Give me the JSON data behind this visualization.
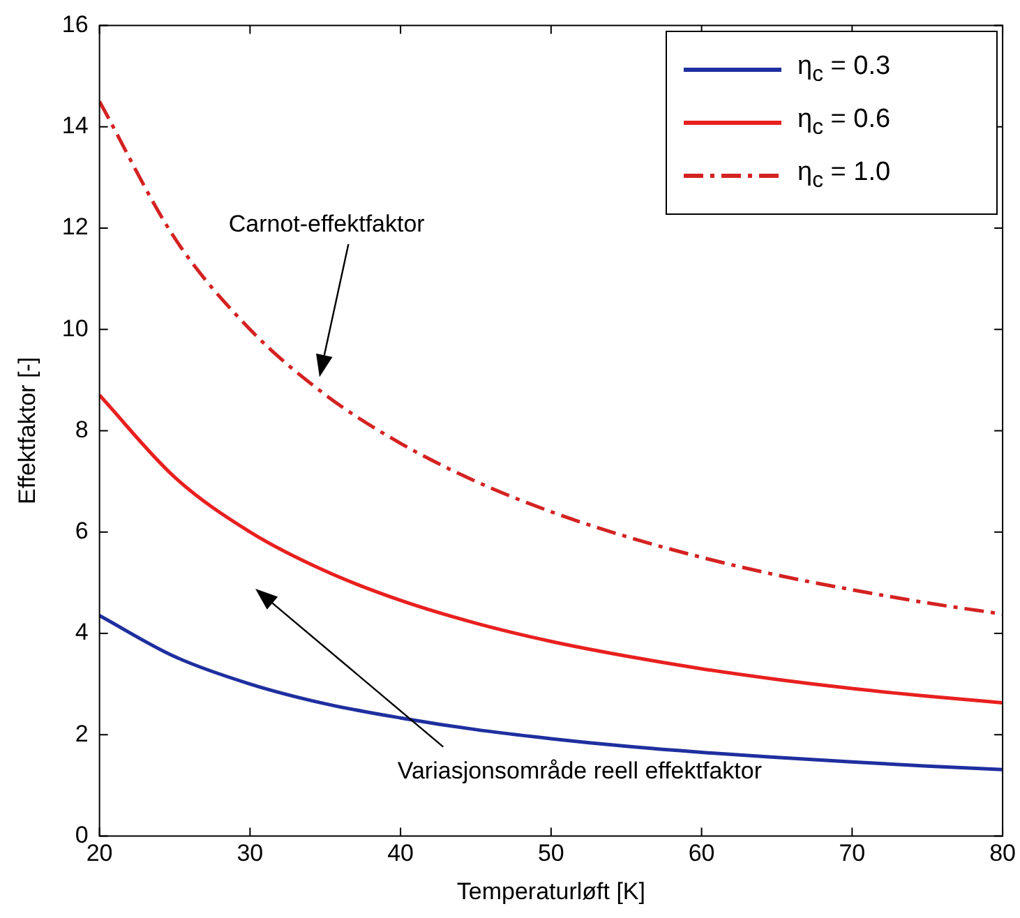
{
  "chart_data": {
    "type": "line",
    "xlabel": "Temperaturløft [K]",
    "ylabel": "Effektfaktor [-]",
    "x": [
      20,
      25,
      30,
      35,
      40,
      45,
      50,
      55,
      60,
      65,
      70,
      75,
      80
    ],
    "series": [
      {
        "name": "η$_{c}$ = 0.3",
        "color": "#1f2f9f",
        "line_style": "solid",
        "values": [
          4.35,
          3.54,
          3.0,
          2.61,
          2.33,
          2.1,
          1.92,
          1.77,
          1.65,
          1.55,
          1.46,
          1.38,
          1.31
        ]
      },
      {
        "name": "η$_{c}$ = 0.6",
        "color": "#e8201f",
        "line_style": "solid",
        "values": [
          8.7,
          7.08,
          6.0,
          5.23,
          4.65,
          4.2,
          3.84,
          3.55,
          3.3,
          3.09,
          2.91,
          2.76,
          2.63
        ]
      },
      {
        "name": "η$_{c}$ = 1.0",
        "color": "#d42222",
        "line_style": "dashed",
        "values": [
          14.5,
          11.8,
          10.0,
          8.71,
          7.75,
          7.0,
          6.4,
          5.91,
          5.5,
          5.15,
          4.86,
          4.6,
          4.38
        ]
      }
    ],
    "xlim": [
      20,
      80
    ],
    "xticks": [
      20,
      30,
      40,
      50,
      60,
      70,
      80
    ],
    "ylim": [
      0,
      16
    ],
    "yticks": [
      0,
      2,
      4,
      6,
      8,
      10,
      12,
      14,
      16
    ],
    "grid": false,
    "legend": "top right",
    "marker": "none",
    "annotations": [
      "Carnot-effektfaktor",
      "Variasjonsområde reell effektfaktor"
    ]
  }
}
